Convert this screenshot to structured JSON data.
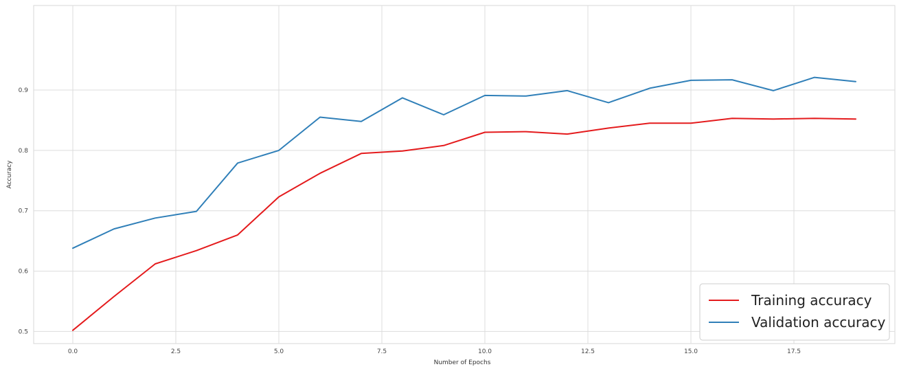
{
  "chart_data": {
    "type": "line",
    "title": "",
    "xlabel": "Number of Epochs",
    "ylabel": "Accuracy",
    "xlim": [
      -0.95,
      19.95
    ],
    "ylim": [
      0.48,
      1.04
    ],
    "x_ticks": [
      0.0,
      2.5,
      5.0,
      7.5,
      10.0,
      12.5,
      15.0,
      17.5
    ],
    "x_tick_labels": [
      "0.0",
      "2.5",
      "5.0",
      "7.5",
      "10.0",
      "12.5",
      "15.0",
      "17.5"
    ],
    "y_ticks": [
      0.5,
      0.6,
      0.7,
      0.8,
      0.9
    ],
    "y_tick_labels": [
      "0.5",
      "0.6",
      "0.7",
      "0.8",
      "0.9"
    ],
    "grid": true,
    "legend_position": "bottom-right",
    "x": [
      0,
      1,
      2,
      3,
      4,
      5,
      6,
      7,
      8,
      9,
      10,
      11,
      12,
      13,
      14,
      15,
      16,
      17,
      18,
      19
    ],
    "series": [
      {
        "name": "Training accuracy",
        "color": "#e41a1c",
        "values": [
          0.502,
          0.558,
          0.612,
          0.634,
          0.66,
          0.723,
          0.762,
          0.795,
          0.799,
          0.808,
          0.83,
          0.831,
          0.827,
          0.837,
          0.845,
          0.845,
          0.853,
          0.852,
          0.853,
          0.852
        ]
      },
      {
        "name": "Validation accuracy",
        "color": "#2f7fb8",
        "values": [
          0.638,
          0.67,
          0.688,
          0.699,
          0.779,
          0.8,
          0.855,
          0.848,
          0.887,
          0.859,
          0.891,
          0.89,
          0.899,
          0.879,
          0.903,
          0.916,
          0.917,
          0.899,
          0.921,
          0.914
        ]
      }
    ]
  }
}
